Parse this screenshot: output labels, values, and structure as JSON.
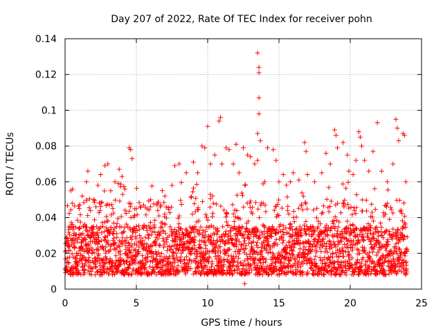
{
  "chart_data": {
    "type": "scatter",
    "title": "Day 207 of 2022, Rate Of TEC Index for receiver pohn",
    "xlabel": "GPS time / hours",
    "ylabel": "ROTI / TECUs",
    "xlim": [
      0,
      25
    ],
    "ylim": [
      0,
      0.14
    ],
    "x_ticks": [
      0,
      5,
      10,
      15,
      20,
      25
    ],
    "x_tick_labels": [
      "0",
      "5",
      "10",
      "15",
      "20",
      "25"
    ],
    "y_ticks": [
      0,
      0.02,
      0.04,
      0.06,
      0.08,
      0.1,
      0.12,
      0.14
    ],
    "y_tick_labels": [
      "0",
      "0.02",
      "0.04",
      "0.06",
      "0.08",
      "0.1",
      "0.12",
      "0.14"
    ],
    "grid": true,
    "marker": "+",
    "series": [
      {
        "name": "ROTI",
        "color": "#ff0000",
        "x_range": [
          0,
          24
        ],
        "typical_range": [
          0.008,
          0.035
        ],
        "points": [
          [
            0.2,
            0.015
          ],
          [
            0.4,
            0.055
          ],
          [
            0.5,
            0.048
          ],
          [
            0.8,
            0.02
          ],
          [
            1.0,
            0.045
          ],
          [
            1.2,
            0.052
          ],
          [
            1.5,
            0.06
          ],
          [
            1.6,
            0.066
          ],
          [
            2.0,
            0.05
          ],
          [
            2.3,
            0.058
          ],
          [
            2.5,
            0.064
          ],
          [
            2.8,
            0.069
          ],
          [
            3.0,
            0.07
          ],
          [
            3.2,
            0.055
          ],
          [
            3.5,
            0.06
          ],
          [
            3.8,
            0.067
          ],
          [
            4.0,
            0.063
          ],
          [
            4.2,
            0.056
          ],
          [
            4.5,
            0.079
          ],
          [
            4.6,
            0.078
          ],
          [
            4.7,
            0.073
          ],
          [
            5.0,
            0.045
          ],
          [
            5.5,
            0.047
          ],
          [
            6.0,
            0.05
          ],
          [
            6.5,
            0.044
          ],
          [
            7.0,
            0.052
          ],
          [
            7.5,
            0.058
          ],
          [
            7.7,
            0.069
          ],
          [
            8.0,
            0.07
          ],
          [
            8.5,
            0.065
          ],
          [
            9.0,
            0.071
          ],
          [
            9.3,
            0.065
          ],
          [
            9.6,
            0.08
          ],
          [
            9.8,
            0.079
          ],
          [
            10.0,
            0.091
          ],
          [
            10.2,
            0.07
          ],
          [
            10.5,
            0.075
          ],
          [
            10.8,
            0.094
          ],
          [
            10.9,
            0.096
          ],
          [
            11.0,
            0.07
          ],
          [
            11.3,
            0.079
          ],
          [
            11.5,
            0.078
          ],
          [
            11.8,
            0.07
          ],
          [
            12.0,
            0.081
          ],
          [
            12.2,
            0.065
          ],
          [
            12.5,
            0.079
          ],
          [
            12.6,
            0.003
          ],
          [
            12.8,
            0.075
          ],
          [
            13.0,
            0.074
          ],
          [
            13.3,
            0.07
          ],
          [
            13.5,
            0.132
          ],
          [
            13.6,
            0.124
          ],
          [
            13.6,
            0.121
          ],
          [
            13.6,
            0.107
          ],
          [
            13.6,
            0.098
          ],
          [
            13.5,
            0.087
          ],
          [
            13.7,
            0.083
          ],
          [
            13.5,
            0.072
          ],
          [
            14.0,
            0.06
          ],
          [
            14.2,
            0.079
          ],
          [
            14.6,
            0.078
          ],
          [
            14.8,
            0.072
          ],
          [
            15.0,
            0.06
          ],
          [
            15.3,
            0.064
          ],
          [
            15.8,
            0.06
          ],
          [
            16.0,
            0.065
          ],
          [
            16.4,
            0.061
          ],
          [
            16.8,
            0.082
          ],
          [
            16.9,
            0.077
          ],
          [
            17.0,
            0.064
          ],
          [
            17.5,
            0.06
          ],
          [
            18.0,
            0.065
          ],
          [
            18.3,
            0.076
          ],
          [
            18.6,
            0.07
          ],
          [
            18.9,
            0.089
          ],
          [
            19.0,
            0.086
          ],
          [
            19.1,
            0.079
          ],
          [
            19.5,
            0.082
          ],
          [
            19.8,
            0.075
          ],
          [
            19.9,
            0.066
          ],
          [
            20.2,
            0.064
          ],
          [
            20.4,
            0.072
          ],
          [
            20.6,
            0.088
          ],
          [
            20.7,
            0.085
          ],
          [
            20.8,
            0.08
          ],
          [
            21.0,
            0.072
          ],
          [
            21.3,
            0.066
          ],
          [
            21.6,
            0.077
          ],
          [
            21.9,
            0.093
          ],
          [
            22.2,
            0.066
          ],
          [
            22.6,
            0.06
          ],
          [
            23.0,
            0.07
          ],
          [
            23.2,
            0.095
          ],
          [
            23.3,
            0.09
          ],
          [
            23.4,
            0.083
          ],
          [
            23.7,
            0.087
          ],
          [
            23.8,
            0.086
          ],
          [
            23.9,
            0.06
          ]
        ]
      }
    ]
  }
}
